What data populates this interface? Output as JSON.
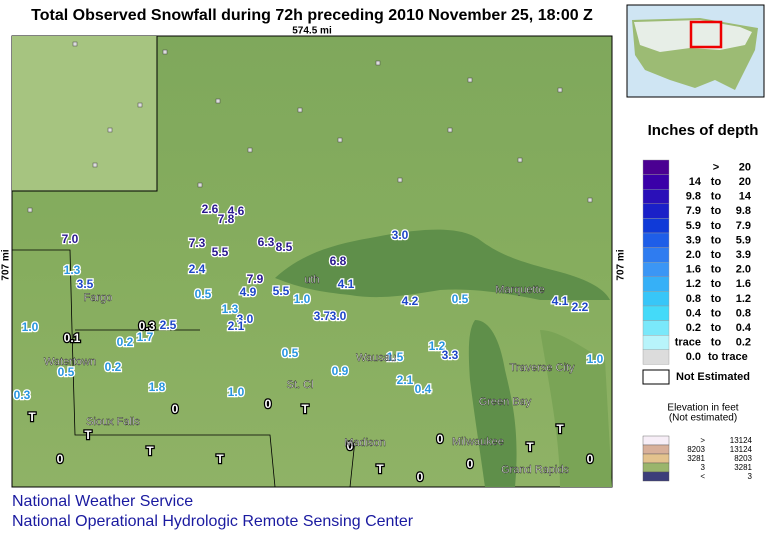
{
  "title": "Total Observed Snowfall during 72h preceding 2010 November 25, 18:00 Z",
  "scale_x": "574.5 mi",
  "scale_y": "707 mi",
  "cities": [
    "Fargo",
    "Watertown",
    "Sioux Falls",
    "Marquette",
    "Traverse City",
    "Green Bay",
    "Milwaukee",
    "Grand Rapids",
    "Madison",
    "Wausau",
    "St. Cl",
    "uth"
  ],
  "stations": [
    {
      "text": "2.6",
      "color": "#2a1890"
    },
    {
      "text": "4.6",
      "color": "#2a1890"
    },
    {
      "text": "7.8",
      "color": "#2a1890"
    },
    {
      "text": "7.0",
      "color": "#2a1890"
    },
    {
      "text": "7.3",
      "color": "#2a1890"
    },
    {
      "text": "6.3",
      "color": "#2a1890"
    },
    {
      "text": "8.5",
      "color": "#2a1890"
    },
    {
      "text": "5.5",
      "color": "#2a1890"
    },
    {
      "text": "6.8",
      "color": "#2a1890"
    },
    {
      "text": "3.0",
      "color": "#1f47c8"
    },
    {
      "text": "1.3",
      "color": "#2a96e0"
    },
    {
      "text": "3.5",
      "color": "#1f47c8"
    },
    {
      "text": "2.4",
      "color": "#1f47c8"
    },
    {
      "text": "7.9",
      "color": "#2a1890"
    },
    {
      "text": "4.9",
      "color": "#1f47c8"
    },
    {
      "text": "5.5",
      "color": "#1f47c8"
    },
    {
      "text": "4.1",
      "color": "#1f47c8"
    },
    {
      "text": "0.5",
      "color": "#2a96e0"
    },
    {
      "text": "1.0",
      "color": "#2a96e0"
    },
    {
      "text": "1.3",
      "color": "#2a96e0"
    },
    {
      "text": "3.0",
      "color": "#1f47c8"
    },
    {
      "text": "2.5",
      "color": "#1f47c8"
    },
    {
      "text": "0.3",
      "color": "#ffffff"
    },
    {
      "text": "2.1",
      "color": "#1f47c8"
    },
    {
      "text": "3.7",
      "color": "#1f47c8"
    },
    {
      "text": "3.0",
      "color": "#1f47c8"
    },
    {
      "text": "4.2",
      "color": "#1f47c8"
    },
    {
      "text": "0.5",
      "color": "#2a96e0"
    },
    {
      "text": "2.2",
      "color": "#1f47c8"
    },
    {
      "text": "4.1",
      "color": "#1f47c8"
    },
    {
      "text": "1.0",
      "color": "#2a96e0"
    },
    {
      "text": "0.1",
      "color": "#ffffff"
    },
    {
      "text": "1.7",
      "color": "#2a96e0"
    },
    {
      "text": "0.2",
      "color": "#2a96e0"
    },
    {
      "text": "0.5",
      "color": "#2a96e0"
    },
    {
      "text": "0.9",
      "color": "#2a96e0"
    },
    {
      "text": "1.5",
      "color": "#2a96e0"
    },
    {
      "text": "2.1",
      "color": "#2a96e0"
    },
    {
      "text": "0.5",
      "color": "#2a96e0"
    },
    {
      "text": "0.2",
      "color": "#2a96e0"
    },
    {
      "text": "1.8",
      "color": "#2a96e0"
    },
    {
      "text": "1.0",
      "color": "#2a96e0"
    },
    {
      "text": "0.4",
      "color": "#2a96e0"
    },
    {
      "text": "1.0",
      "color": "#2a96e0"
    },
    {
      "text": "1.2",
      "color": "#2a96e0"
    },
    {
      "text": "3.3",
      "color": "#1f47c8"
    },
    {
      "text": "0.3",
      "color": "#2a96e0"
    },
    {
      "text": "T",
      "color": "#ffffff"
    },
    {
      "text": "T",
      "color": "#ffffff"
    },
    {
      "text": "T",
      "color": "#ffffff"
    },
    {
      "text": "0",
      "color": "#ffffff"
    },
    {
      "text": "0",
      "color": "#ffffff"
    },
    {
      "text": "T",
      "color": "#ffffff"
    },
    {
      "text": "0",
      "color": "#ffffff"
    },
    {
      "text": "T",
      "color": "#ffffff"
    },
    {
      "text": "0",
      "color": "#ffffff"
    },
    {
      "text": "0",
      "color": "#ffffff"
    },
    {
      "text": "T",
      "color": "#ffffff"
    },
    {
      "text": "0",
      "color": "#ffffff"
    },
    {
      "text": "T",
      "color": "#ffffff"
    },
    {
      "text": "0",
      "color": "#ffffff"
    },
    {
      "text": "T",
      "color": "#ffffff"
    },
    {
      "text": "0",
      "color": "#ffffff"
    }
  ],
  "legend": {
    "title": "Inches of depth",
    "rows": [
      {
        "lo": ">",
        "hi": "20",
        "color": "#4b0092"
      },
      {
        "lo": "14",
        "sep": "to",
        "hi": "20",
        "color": "#3a00a8"
      },
      {
        "lo": "9.8",
        "sep": "to",
        "hi": "14",
        "color": "#2a10b8"
      },
      {
        "lo": "7.9",
        "sep": "to",
        "hi": "9.8",
        "color": "#1a20c8"
      },
      {
        "lo": "5.9",
        "sep": "to",
        "hi": "7.9",
        "color": "#0f3ad8"
      },
      {
        "lo": "3.9",
        "sep": "to",
        "hi": "5.9",
        "color": "#1e5ee8"
      },
      {
        "lo": "2.0",
        "sep": "to",
        "hi": "3.9",
        "color": "#2f7cf0"
      },
      {
        "lo": "1.6",
        "sep": "to",
        "hi": "2.0",
        "color": "#3b96f5"
      },
      {
        "lo": "1.2",
        "sep": "to",
        "hi": "1.6",
        "color": "#36b0f7"
      },
      {
        "lo": "0.8",
        "sep": "to",
        "hi": "1.2",
        "color": "#38c6f8"
      },
      {
        "lo": "0.4",
        "sep": "to",
        "hi": "0.8",
        "color": "#44daf9"
      },
      {
        "lo": "0.2",
        "sep": "to",
        "hi": "0.4",
        "color": "#7ae8fa"
      },
      {
        "lo": "trace",
        "sep": "to",
        "hi": "0.2",
        "color": "#b8f4fb"
      },
      {
        "lo": "0.0",
        "hi": "to trace",
        "color": "#dcdcdc"
      }
    ],
    "not_estimated": "Not Estimated"
  },
  "elevation": {
    "title": "Elevation in feet",
    "subtitle": "(Not estimated)",
    "rows": [
      {
        "lo": ">",
        "hi": "13124",
        "color": "#f7eef7"
      },
      {
        "lo": "8203",
        "hi": "13124",
        "color": "#d8b09a"
      },
      {
        "lo": "3281",
        "hi": "8203",
        "color": "#e3c28d"
      },
      {
        "lo": "3",
        "hi": "3281",
        "color": "#9ab56c"
      },
      {
        "lo": "<",
        "hi": "3",
        "color": "#3c3e7a"
      }
    ]
  },
  "footer": [
    "National Weather Service",
    "National Operational Hydrologic Remote Sensing Center"
  ]
}
